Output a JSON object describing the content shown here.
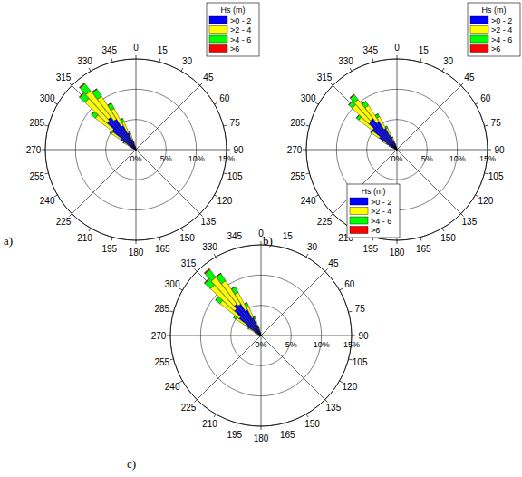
{
  "chart_data": [
    {
      "type": "polar_bar",
      "label": "a)",
      "legend_title": "Hs (m)",
      "stacked": true,
      "grid": true,
      "legend": "upper right",
      "x": [
        290,
        295,
        300,
        305,
        310,
        315,
        320,
        325,
        330,
        335,
        340,
        345,
        350
      ],
      "xlim": [
        0,
        360
      ],
      "xticks": [
        0,
        15,
        30,
        45,
        60,
        75,
        90,
        105,
        120,
        135,
        150,
        165,
        180,
        195,
        210,
        225,
        240,
        255,
        270,
        285,
        300,
        315,
        330,
        345
      ],
      "ylim": [
        0,
        15
      ],
      "yticks": [
        {
          "value": 0,
          "label": "0%"
        },
        {
          "value": 5,
          "label": "5%"
        },
        {
          "value": 10,
          "label": "10%"
        },
        {
          "value": 15,
          "label": "15%"
        }
      ],
      "series": [
        {
          "name": ">0 - 2",
          "color": "#0000ff",
          "values": [
            0.3,
            0.8,
            1.5,
            3.0,
            5.0,
            6.5,
            6.8,
            6.0,
            4.5,
            3.0,
            1.8,
            0.8,
            0.3
          ]
        },
        {
          "name": ">2 - 4",
          "color": "#ffff00",
          "values": [
            0.1,
            0.3,
            0.8,
            1.8,
            3.5,
            5.0,
            5.5,
            4.5,
            3.2,
            2.0,
            1.0,
            0.4,
            0.1
          ]
        },
        {
          "name": ">4 - 6",
          "color": "#00ff00",
          "values": [
            0,
            0.05,
            0.1,
            0.3,
            0.8,
            1.2,
            1.5,
            1.4,
            1.0,
            0.6,
            0.3,
            0.1,
            0
          ]
        },
        {
          "name": ">6",
          "color": "#ff0000",
          "values": [
            0,
            0,
            0,
            0,
            0.05,
            0.1,
            0.15,
            0.1,
            0.05,
            0,
            0,
            0,
            0
          ]
        }
      ]
    },
    {
      "type": "polar_bar",
      "label": "b)",
      "legend_title": "Hs (m)",
      "stacked": true,
      "grid": true,
      "legend": "upper right",
      "x": [
        290,
        295,
        300,
        305,
        310,
        315,
        320,
        325,
        330,
        335,
        340,
        345,
        350
      ],
      "xlim": [
        0,
        360
      ],
      "xticks": [
        0,
        15,
        30,
        45,
        60,
        75,
        90,
        105,
        120,
        135,
        150,
        165,
        180,
        195,
        210,
        225,
        240,
        255,
        270,
        285,
        300,
        315,
        330,
        345
      ],
      "ylim": [
        0,
        15
      ],
      "yticks": [
        {
          "value": 0,
          "label": "0%"
        },
        {
          "value": 5,
          "label": "5%"
        },
        {
          "value": 10,
          "label": "10%"
        },
        {
          "value": 15,
          "label": "15%"
        }
      ],
      "series": [
        {
          "name": ">0 - 2",
          "color": "#0000ff",
          "values": [
            0.4,
            1.0,
            2.0,
            3.5,
            5.2,
            6.3,
            6.5,
            5.5,
            4.0,
            2.6,
            1.5,
            0.7,
            0.2
          ]
        },
        {
          "name": ">2 - 4",
          "color": "#ffff00",
          "values": [
            0.1,
            0.3,
            0.7,
            1.5,
            2.8,
            3.8,
            4.0,
            3.2,
            2.2,
            1.3,
            0.6,
            0.2,
            0.05
          ]
        },
        {
          "name": ">4 - 6",
          "color": "#00ff00",
          "values": [
            0,
            0.05,
            0.1,
            0.2,
            0.5,
            0.8,
            1.0,
            0.8,
            0.5,
            0.3,
            0.1,
            0.05,
            0
          ]
        },
        {
          "name": ">6",
          "color": "#ff0000",
          "values": [
            0,
            0,
            0,
            0,
            0,
            0.05,
            0.1,
            0.05,
            0,
            0,
            0,
            0,
            0
          ]
        }
      ]
    },
    {
      "type": "polar_bar",
      "label": "c)",
      "legend_title": "Hs (m)",
      "stacked": true,
      "grid": true,
      "legend": "upper right",
      "x": [
        290,
        295,
        300,
        305,
        310,
        315,
        320,
        325,
        330,
        335,
        340,
        345,
        350
      ],
      "xlim": [
        0,
        360
      ],
      "xticks": [
        0,
        15,
        30,
        45,
        60,
        75,
        90,
        105,
        120,
        135,
        150,
        165,
        180,
        195,
        210,
        225,
        240,
        255,
        270,
        285,
        300,
        315,
        330,
        345
      ],
      "ylim": [
        0,
        15
      ],
      "yticks": [
        {
          "value": 0,
          "label": "0%"
        },
        {
          "value": 5,
          "label": "5%"
        },
        {
          "value": 10,
          "label": "10%"
        },
        {
          "value": 15,
          "label": "15%"
        }
      ],
      "series": [
        {
          "name": ">0 - 2",
          "color": "#0000ff",
          "values": [
            0.2,
            0.6,
            1.3,
            2.8,
            4.6,
            6.0,
            6.6,
            6.2,
            4.8,
            3.2,
            1.9,
            0.9,
            0.3
          ]
        },
        {
          "name": ">2 - 4",
          "color": "#ffff00",
          "values": [
            0.1,
            0.4,
            1.0,
            2.2,
            4.0,
            5.4,
            5.6,
            4.6,
            3.3,
            2.1,
            1.1,
            0.4,
            0.1
          ]
        },
        {
          "name": ">4 - 6",
          "color": "#00ff00",
          "values": [
            0,
            0.05,
            0.15,
            0.4,
            0.9,
            1.3,
            1.6,
            1.4,
            1.0,
            0.6,
            0.3,
            0.1,
            0
          ]
        },
        {
          "name": ">6",
          "color": "#ff0000",
          "values": [
            0,
            0,
            0,
            0,
            0.05,
            0.1,
            0.2,
            0.1,
            0.05,
            0,
            0,
            0,
            0
          ]
        }
      ]
    }
  ]
}
